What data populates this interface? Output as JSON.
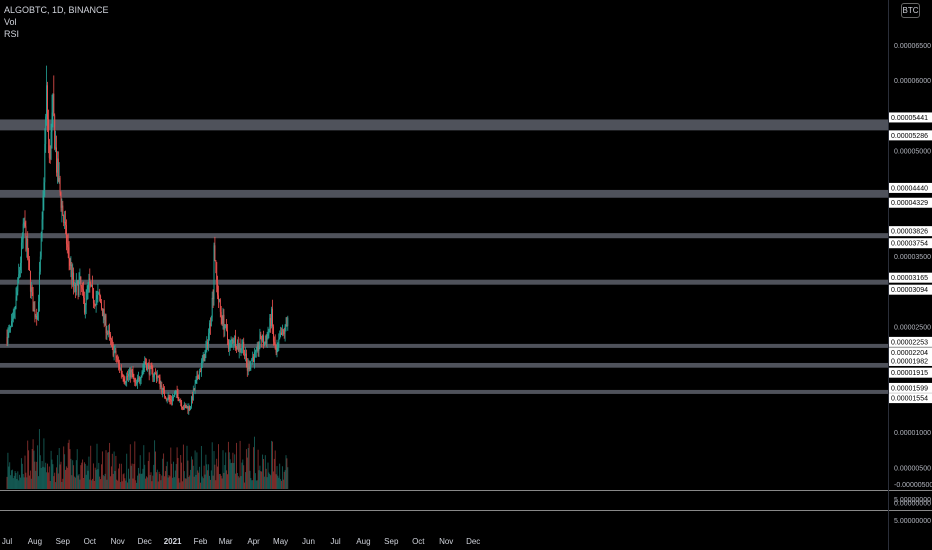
{
  "legend": {
    "symbol_line": "ALGOBTC, 1D, BINANCE",
    "vol_label": "Vol",
    "rsi_label": "RSI"
  },
  "currency_badge": "BTC",
  "colors": {
    "background": "#000000",
    "up": "#26a69a",
    "down": "#ef5350",
    "level_band": "#5d606b",
    "text": "#d1d4dc"
  },
  "chart_data": {
    "type": "candlestick",
    "symbol": "ALGOBTC",
    "interval": "1D",
    "exchange": "BINANCE",
    "x_ticks": [
      "Jul",
      "Aug",
      "Sep",
      "Oct",
      "Nov",
      "Dec",
      "2021",
      "Feb",
      "Mar",
      "Apr",
      "May",
      "Jun",
      "Jul",
      "Aug",
      "Sep",
      "Oct",
      "Nov",
      "Dec"
    ],
    "y_ticks": [
      {
        "value": 6.5e-05,
        "label": "0.00006500"
      },
      {
        "value": 6e-05,
        "label": "0.00006000"
      },
      {
        "value": 5e-05,
        "label": "0.00005000"
      },
      {
        "value": 3.5e-05,
        "label": "0.00003500"
      },
      {
        "value": 2.5e-05,
        "label": "0.00002500"
      },
      {
        "value": 1e-05,
        "label": "0.00001000"
      },
      {
        "value": 5e-06,
        "label": "0.00000500"
      },
      {
        "value": 0,
        "label": "0.00000000"
      }
    ],
    "level_labels": [
      {
        "value": 5.441e-05,
        "label": "0.00005441"
      },
      {
        "value": 5.286e-05,
        "label": "0.00005286"
      },
      {
        "value": 4.44e-05,
        "label": "0.00004440"
      },
      {
        "value": 4.329e-05,
        "label": "0.00004329"
      },
      {
        "value": 3.826e-05,
        "label": "0.00003826"
      },
      {
        "value": 3.754e-05,
        "label": "0.00003754"
      },
      {
        "value": 3.165e-05,
        "label": "0.00003165"
      },
      {
        "value": 3.094e-05,
        "label": "0.00003094"
      },
      {
        "value": 2.253e-05,
        "label": "0.00002253"
      },
      {
        "value": 2.204e-05,
        "label": "0.00002204"
      },
      {
        "value": 1.982e-05,
        "label": "0.00001982"
      },
      {
        "value": 1.915e-05,
        "label": "0.00001915"
      },
      {
        "value": 1.599e-05,
        "label": "0.00001599"
      },
      {
        "value": 1.554e-05,
        "label": "0.00001554"
      }
    ],
    "bands": [
      [
        5.286e-05,
        5.441e-05
      ],
      [
        4.329e-05,
        4.44e-05
      ],
      [
        3.754e-05,
        3.826e-05
      ],
      [
        3.094e-05,
        3.165e-05
      ],
      [
        2.204e-05,
        2.253e-05
      ],
      [
        1.915e-05,
        1.982e-05
      ],
      [
        1.554e-05,
        1.599e-05
      ]
    ],
    "close_points": [
      [
        "2020-07-01",
        2.35e-05
      ],
      [
        "2020-07-08",
        2.55e-05
      ],
      [
        "2020-07-14",
        3.2e-05
      ],
      [
        "2020-07-20",
        3.95e-05
      ],
      [
        "2020-07-23",
        3.6e-05
      ],
      [
        "2020-07-27",
        3.1e-05
      ],
      [
        "2020-07-31",
        2.7e-05
      ],
      [
        "2020-08-04",
        2.7e-05
      ],
      [
        "2020-08-09",
        3.9e-05
      ],
      [
        "2020-08-14",
        5.8e-05
      ],
      [
        "2020-08-17",
        4.8e-05
      ],
      [
        "2020-08-21",
        5.6e-05
      ],
      [
        "2020-08-25",
        4.8e-05
      ],
      [
        "2020-08-30",
        4.3e-05
      ],
      [
        "2020-09-04",
        3.8e-05
      ],
      [
        "2020-09-09",
        3.4e-05
      ],
      [
        "2020-09-14",
        3e-05
      ],
      [
        "2020-09-20",
        3.1e-05
      ],
      [
        "2020-09-25",
        2.8e-05
      ],
      [
        "2020-09-30",
        3.1e-05
      ],
      [
        "2020-10-05",
        2.9e-05
      ],
      [
        "2020-10-12",
        2.9e-05
      ],
      [
        "2020-10-19",
        2.5e-05
      ],
      [
        "2020-10-26",
        2.2e-05
      ],
      [
        "2020-11-02",
        1.95e-05
      ],
      [
        "2020-11-09",
        1.75e-05
      ],
      [
        "2020-11-16",
        1.85e-05
      ],
      [
        "2020-11-21",
        1.65e-05
      ],
      [
        "2020-11-26",
        1.8e-05
      ],
      [
        "2020-12-01",
        2e-05
      ],
      [
        "2020-12-08",
        1.85e-05
      ],
      [
        "2020-12-15",
        1.8e-05
      ],
      [
        "2020-12-22",
        1.55e-05
      ],
      [
        "2020-12-29",
        1.45e-05
      ],
      [
        "2021-01-06",
        1.55e-05
      ],
      [
        "2021-01-13",
        1.35e-05
      ],
      [
        "2021-01-20",
        1.35e-05
      ],
      [
        "2021-01-27",
        1.7e-05
      ],
      [
        "2021-02-02",
        1.95e-05
      ],
      [
        "2021-02-08",
        2.2e-05
      ],
      [
        "2021-02-12",
        2.6e-05
      ],
      [
        "2021-02-15",
        3e-05
      ],
      [
        "2021-02-16",
        3.7e-05
      ],
      [
        "2021-02-19",
        3.1e-05
      ],
      [
        "2021-02-23",
        2.7e-05
      ],
      [
        "2021-02-28",
        2.5e-05
      ],
      [
        "2021-03-05",
        2.2e-05
      ],
      [
        "2021-03-10",
        2.35e-05
      ],
      [
        "2021-03-15",
        2.2e-05
      ],
      [
        "2021-03-20",
        2.25e-05
      ],
      [
        "2021-03-25",
        1.9e-05
      ],
      [
        "2021-03-30",
        2.05e-05
      ],
      [
        "2021-04-04",
        2.1e-05
      ],
      [
        "2021-04-09",
        2.35e-05
      ],
      [
        "2021-04-13",
        2.25e-05
      ],
      [
        "2021-04-17",
        2.4e-05
      ],
      [
        "2021-04-21",
        2.65e-05
      ],
      [
        "2021-04-23",
        2.3e-05
      ],
      [
        "2021-04-26",
        2.1e-05
      ],
      [
        "2021-05-01",
        2.35e-05
      ],
      [
        "2021-05-06",
        2.45e-05
      ],
      [
        "2021-05-09",
        2.65e-05
      ]
    ]
  }
}
